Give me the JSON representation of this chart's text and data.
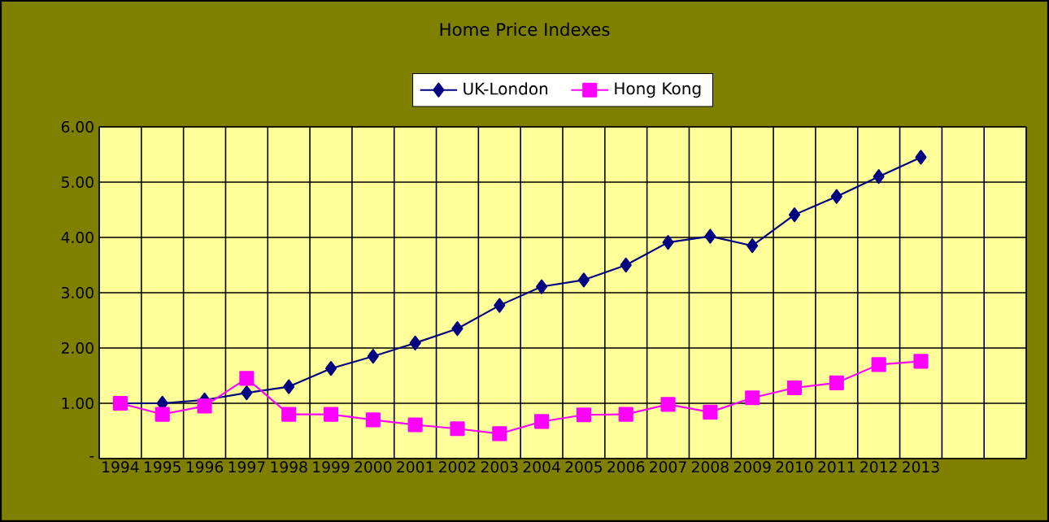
{
  "chart_data": {
    "type": "line",
    "title": "Home Price Indexes",
    "categories": [
      "1994",
      "1995",
      "1996",
      "1997",
      "1998",
      "1999",
      "2000",
      "2001",
      "2002",
      "2003",
      "2004",
      "2005",
      "2006",
      "2007",
      "2008",
      "2009",
      "2010",
      "2011",
      "2012",
      "2013",
      null,
      null
    ],
    "series": [
      {
        "name": "UK-London",
        "color": "#000080",
        "marker": "diamond",
        "values": [
          1.0,
          1.0,
          1.06,
          1.19,
          1.3,
          1.63,
          1.85,
          2.09,
          2.35,
          2.77,
          3.11,
          3.23,
          3.5,
          3.91,
          4.02,
          3.85,
          4.41,
          4.74,
          5.1,
          5.45,
          null,
          null
        ]
      },
      {
        "name": "Hong Kong",
        "color": "#ff00ff",
        "marker": "square",
        "values": [
          1.0,
          0.8,
          0.95,
          1.45,
          0.8,
          0.8,
          0.7,
          0.61,
          0.54,
          0.45,
          0.67,
          0.79,
          0.8,
          0.98,
          0.84,
          1.1,
          1.28,
          1.37,
          1.7,
          1.76,
          null,
          null
        ]
      }
    ],
    "ylim": [
      0,
      6
    ],
    "yticks": [
      {
        "value": 0,
        "label": "-"
      },
      {
        "value": 1,
        "label": "1.00"
      },
      {
        "value": 2,
        "label": "2.00"
      },
      {
        "value": 3,
        "label": "3.00"
      },
      {
        "value": 4,
        "label": "4.00"
      },
      {
        "value": 5,
        "label": "5.00"
      },
      {
        "value": 6,
        "label": "6.00"
      }
    ],
    "grid": true,
    "legend": "top",
    "line_style": "solid"
  }
}
